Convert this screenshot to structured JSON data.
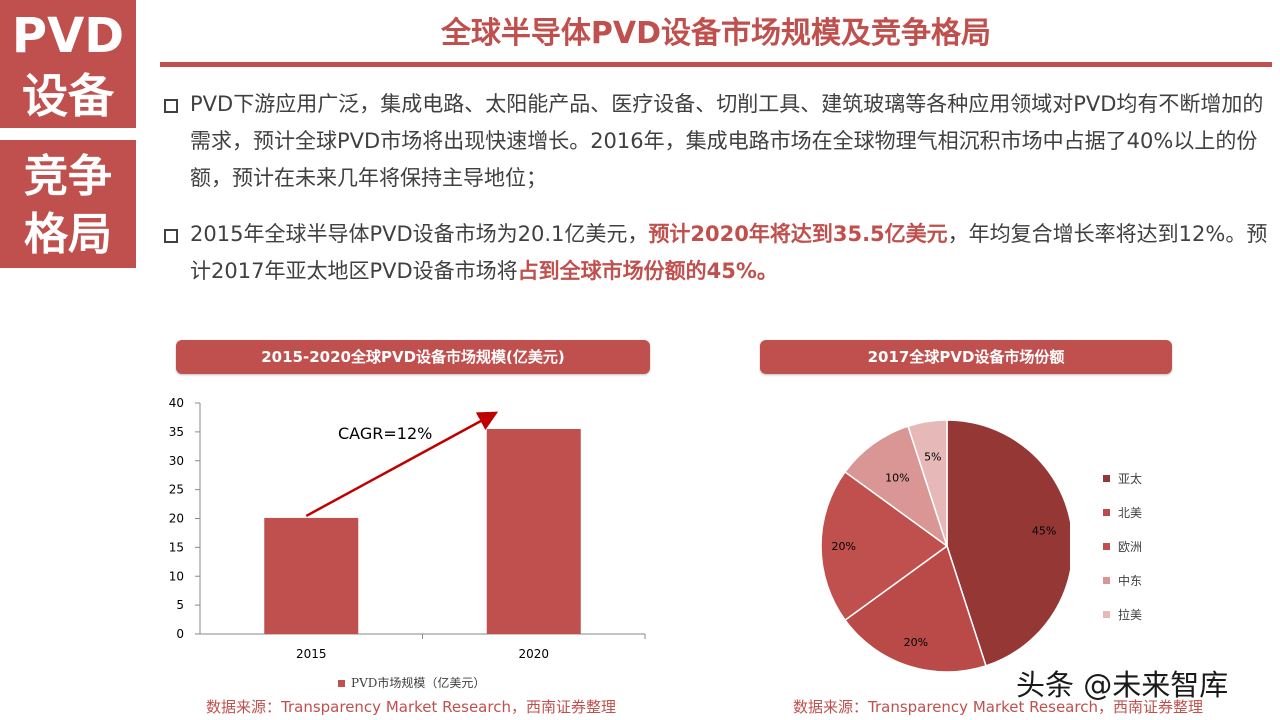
{
  "side_labels": {
    "top_line1": "PVD",
    "top_line2": "设备",
    "bottom_line1": "竞争",
    "bottom_line2": "格局"
  },
  "title": "全球半导体PVD设备市场规模及竞争格局",
  "bullets": [
    {
      "text": "PVD下游应用广泛，集成电路、太阳能产品、医疗设备、切削工具、建筑玻璃等各种应用领域对PVD均有不断增加的需求，预计全球PVD市场将出现快速增长。2016年，集成电路市场在全球物理气相沉积市场中占据了40%以上的份额，预计在未来几年将保持主导地位；"
    },
    {
      "text_a": "2015年全球半导体PVD设备市场为20.1亿美元，",
      "bold_a": "预计2020年将达到35.5亿美元",
      "text_b": "，年均复合增长率将达到12%。预计2017年亚太地区PVD设备市场将",
      "bold_b": "占到全球市场份额的45%。"
    }
  ],
  "colors": {
    "accent": "#c0504d",
    "text": "#404040",
    "pie_slices": [
      "#953735",
      "#b94a47",
      "#c0504d",
      "#d99694",
      "#e6b9b8"
    ]
  },
  "chart_data": [
    {
      "type": "bar",
      "title": "2015-2020全球PVD设备市场规模(亿美元)",
      "categories": [
        "2015",
        "2020"
      ],
      "series": [
        {
          "name": "PVD市场规模（亿美元）",
          "values": [
            20.1,
            35.5
          ]
        }
      ],
      "ylim": [
        0,
        40
      ],
      "yticks": [
        0,
        5,
        10,
        15,
        20,
        25,
        30,
        35,
        40
      ],
      "annotation": "CAGR=12%",
      "legend_position": "bottom",
      "grid": false
    },
    {
      "type": "pie",
      "title": "2017全球PVD设备市场份额",
      "labels": [
        "亚太",
        "北美",
        "欧洲",
        "中东",
        "拉美"
      ],
      "values": [
        45,
        20,
        20,
        10,
        5
      ],
      "data_labels": [
        "45%",
        "20%",
        "20%",
        "10%",
        "5%"
      ],
      "legend_position": "right"
    }
  ],
  "source_left": "数据来源：Transparency Market Research，西南证券整理",
  "source_right": "数据来源：Transparency Market Research，西南证券整理",
  "watermark": "头条 @未来智库"
}
